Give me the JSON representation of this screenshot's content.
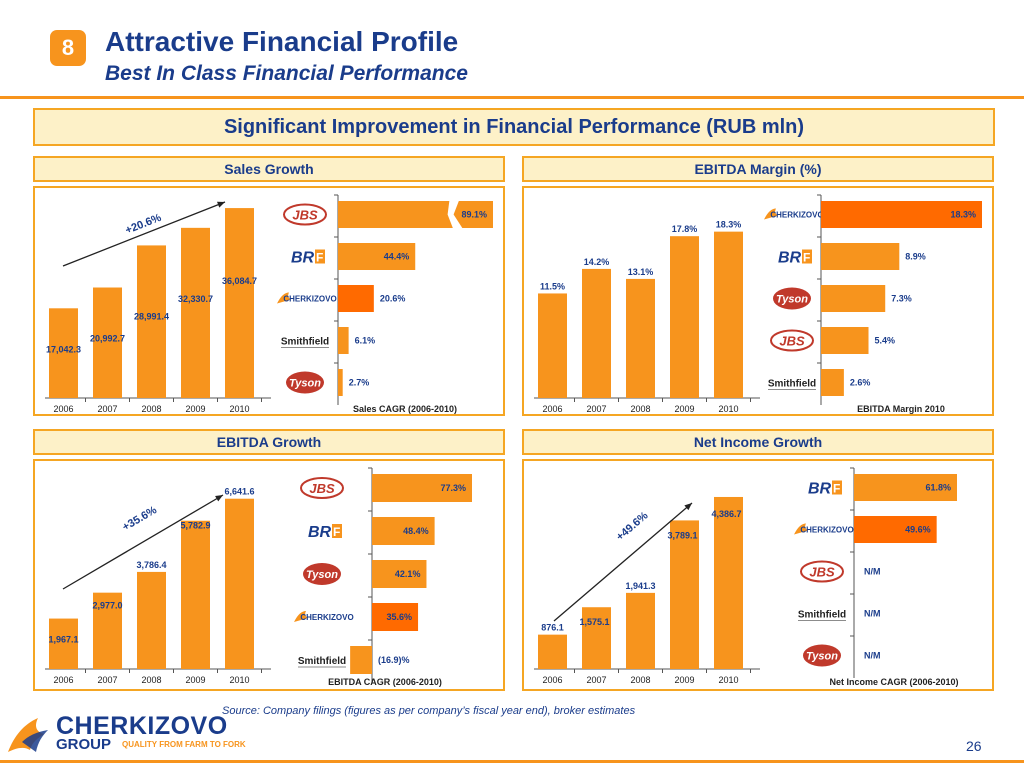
{
  "header": {
    "badge": "8",
    "title": "Attractive Financial Profile",
    "subtitle": "Best In Class Financial Performance"
  },
  "banner": "Significant Improvement in Financial Performance (RUB mln)",
  "colors": {
    "orange": "#f7941d",
    "highlight": "#ff6a00",
    "navy": "#1a3c8b",
    "banner_bg": "#fdf1c8",
    "border": "#f5a623"
  },
  "panels": [
    {
      "title": "Sales Growth",
      "cagr_label": "+20.6%"
    },
    {
      "title": "EBITDA Margin (%)"
    },
    {
      "title": "EBITDA Growth",
      "cagr_label": "+35.6%"
    },
    {
      "title": "Net Income Growth",
      "cagr_label": "+49.6%"
    }
  ],
  "chart_data": [
    {
      "type": "bar",
      "categories": [
        "2006",
        "2007",
        "2008",
        "2009",
        "2010"
      ],
      "values": [
        17042.3,
        20992.7,
        28991.4,
        32330.7,
        36084.7
      ],
      "labels": [
        "17,042.3",
        "20,992.7",
        "28,991.4",
        "32,330.7",
        "36,084.7"
      ],
      "ymax": 38000
    },
    {
      "type": "bar",
      "orientation": "horizontal",
      "xlabel": "Sales CAGR (2006-2010)",
      "companies": [
        "JBS",
        "BRF",
        "CHERKIZOVO",
        "Smithfield",
        "Tyson"
      ],
      "values": [
        89.1,
        44.4,
        20.6,
        6.1,
        2.7
      ],
      "labels": [
        "89.1%",
        "44.4%",
        "20.6%",
        "6.1%",
        "2.7%"
      ],
      "highlight": 2,
      "axis_break": 0
    },
    {
      "type": "bar",
      "categories": [
        "2006",
        "2007",
        "2008",
        "2009",
        "2010"
      ],
      "values": [
        11.5,
        14.2,
        13.1,
        17.8,
        18.3
      ],
      "labels": [
        "11.5%",
        "14.2%",
        "13.1%",
        "17.8%",
        "18.3%"
      ],
      "ymax": 22
    },
    {
      "type": "bar",
      "orientation": "horizontal",
      "xlabel": "EBITDA Margin 2010",
      "companies": [
        "CHERKIZOVO",
        "BRF",
        "Tyson",
        "JBS",
        "Smithfield"
      ],
      "values": [
        18.3,
        8.9,
        7.3,
        5.4,
        2.6
      ],
      "labels": [
        "18.3%",
        "8.9%",
        "7.3%",
        "5.4%",
        "2.6%"
      ],
      "highlight": 0
    },
    {
      "type": "bar",
      "categories": [
        "2006",
        "2007",
        "2008",
        "2009",
        "2010"
      ],
      "values": [
        1967.1,
        2977.0,
        3786.4,
        5782.9,
        6641.6
      ],
      "labels": [
        "1,967.1",
        "2,977.0",
        "3,786.4",
        "5,782.9",
        "6,641.6"
      ],
      "ymax": 7800
    },
    {
      "type": "bar",
      "orientation": "horizontal",
      "xlabel": "EBITDA CAGR (2006-2010)",
      "companies": [
        "JBS",
        "BRF",
        "Tyson",
        "CHERKIZOVO",
        "Smithfield"
      ],
      "values": [
        77.3,
        48.4,
        42.1,
        35.6,
        -16.9
      ],
      "labels": [
        "77.3%",
        "48.4%",
        "42.1%",
        "35.6%",
        "(16.9)%"
      ],
      "highlight": 3
    },
    {
      "type": "bar",
      "categories": [
        "2006",
        "2007",
        "2008",
        "2009",
        "2010"
      ],
      "values": [
        876.1,
        1575.1,
        1941.3,
        3789.1,
        4386.7
      ],
      "labels": [
        "876.1",
        "1,575.1",
        "1,941.3",
        "3,789.1",
        "4,386.7"
      ],
      "ymax": 5100
    },
    {
      "type": "bar",
      "orientation": "horizontal",
      "xlabel": "Net Income CAGR (2006-2010)",
      "companies": [
        "BRF",
        "CHERKIZOVO",
        "JBS",
        "Smithfield",
        "Tyson"
      ],
      "values": [
        61.8,
        49.6,
        null,
        null,
        null
      ],
      "labels": [
        "61.8%",
        "49.6%",
        "N/M",
        "N/M",
        "N/M"
      ],
      "highlight": 1
    }
  ],
  "footer": {
    "source": "Source: Company filings (figures as per company’s fiscal year end), broker estimates",
    "logo_word": "CHERKIZOVO",
    "logo_group": "GROUP",
    "logo_tagline": "QUALITY FROM FARM TO FORK",
    "page": "26"
  }
}
